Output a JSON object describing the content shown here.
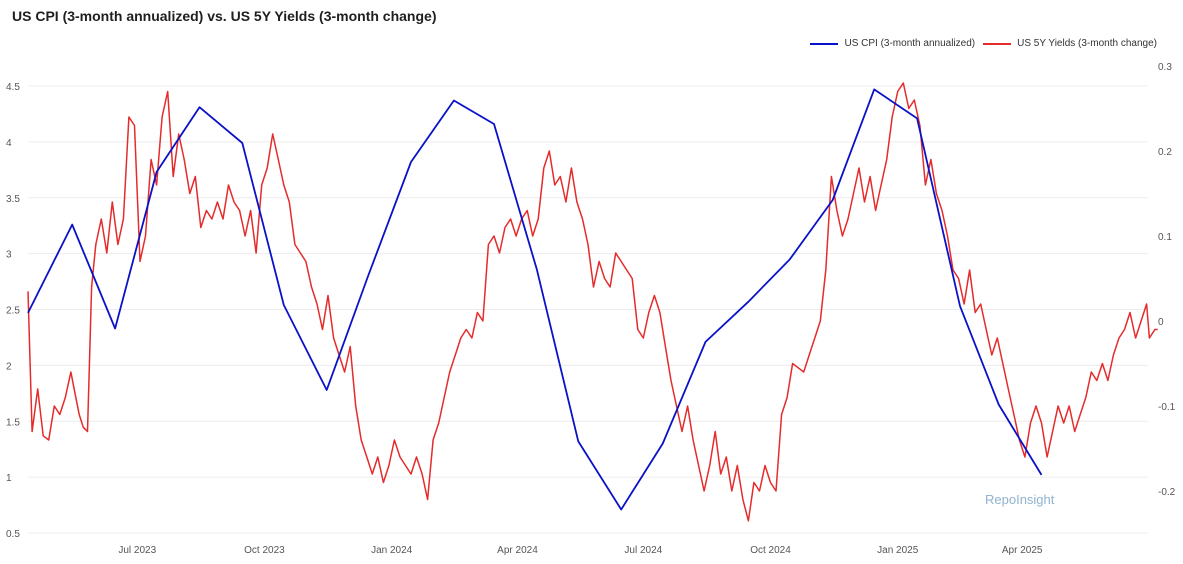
{
  "chart_data": {
    "type": "line",
    "title": "US CPI (3-month annualized) vs. US 5Y Yields (3-month change)",
    "xlabel": "",
    "ylabel": "",
    "legend_position": "top-right",
    "grid": true,
    "x_ticks": [
      "Jul 2023",
      "Oct 2023",
      "Jan 2024",
      "Apr 2024",
      "Jul 2024",
      "Oct 2024",
      "Jan 2025",
      "Apr 2025"
    ],
    "x_tick_dates": [
      "2023-07-01",
      "2023-10-01",
      "2024-01-01",
      "2024-04-01",
      "2024-07-01",
      "2024-10-01",
      "2025-01-01",
      "2025-04-01"
    ],
    "x_range": [
      "2023-04-13",
      "2025-07-01"
    ],
    "y_left": {
      "range": [
        0.5,
        4.6
      ],
      "ticks": [
        "0.5",
        "1",
        "1.5",
        "2",
        "2.5",
        "3",
        "3.5",
        "4",
        "4.5"
      ]
    },
    "y_right": {
      "range": [
        -0.25,
        0.3
      ],
      "ticks": [
        "-0.2",
        "-0.1",
        "0",
        "0.1",
        "0.2",
        "0.3"
      ]
    },
    "series": [
      {
        "name": "US CPI (3-month annualized)",
        "color": "#0a12c8",
        "axis": "left",
        "points": [
          [
            "2023-04-13",
            2.47
          ],
          [
            "2023-05-15",
            3.26
          ],
          [
            "2023-06-15",
            2.33
          ],
          [
            "2023-07-15",
            3.73
          ],
          [
            "2023-08-15",
            4.31
          ],
          [
            "2023-09-15",
            3.99
          ],
          [
            "2023-10-15",
            2.54
          ],
          [
            "2023-11-15",
            1.78
          ],
          [
            "2023-12-15",
            2.8
          ],
          [
            "2024-01-15",
            3.82
          ],
          [
            "2024-02-15",
            4.37
          ],
          [
            "2024-03-15",
            4.16
          ],
          [
            "2024-04-15",
            2.86
          ],
          [
            "2024-05-15",
            1.32
          ],
          [
            "2024-06-15",
            0.71
          ],
          [
            "2024-07-15",
            1.3
          ],
          [
            "2024-08-15",
            2.21
          ],
          [
            "2024-09-15",
            2.57
          ],
          [
            "2024-10-15",
            2.95
          ],
          [
            "2024-11-15",
            3.48
          ],
          [
            "2024-12-15",
            4.47
          ],
          [
            "2025-01-15",
            4.21
          ],
          [
            "2025-02-15",
            2.53
          ],
          [
            "2025-03-15",
            1.65
          ],
          [
            "2025-04-15",
            1.02
          ]
        ]
      },
      {
        "name": "US 5Y Yields (3-month change)",
        "color": "#e52b2b",
        "axis": "right",
        "points": [
          [
            "2023-04-13",
            0.035
          ],
          [
            "2023-04-16",
            -0.13
          ],
          [
            "2023-04-20",
            -0.08
          ],
          [
            "2023-04-24",
            -0.135
          ],
          [
            "2023-04-28",
            -0.14
          ],
          [
            "2023-05-02",
            -0.1
          ],
          [
            "2023-05-06",
            -0.11
          ],
          [
            "2023-05-10",
            -0.09
          ],
          [
            "2023-05-14",
            -0.06
          ],
          [
            "2023-05-17",
            -0.085
          ],
          [
            "2023-05-20",
            -0.11
          ],
          [
            "2023-05-23",
            -0.125
          ],
          [
            "2023-05-26",
            -0.13
          ],
          [
            "2023-05-29",
            0.04
          ],
          [
            "2023-06-01",
            0.09
          ],
          [
            "2023-06-05",
            0.12
          ],
          [
            "2023-06-09",
            0.08
          ],
          [
            "2023-06-13",
            0.14
          ],
          [
            "2023-06-17",
            0.09
          ],
          [
            "2023-06-21",
            0.12
          ],
          [
            "2023-06-25",
            0.24
          ],
          [
            "2023-06-29",
            0.23
          ],
          [
            "2023-07-03",
            0.07
          ],
          [
            "2023-07-07",
            0.1
          ],
          [
            "2023-07-11",
            0.19
          ],
          [
            "2023-07-15",
            0.16
          ],
          [
            "2023-07-19",
            0.24
          ],
          [
            "2023-07-23",
            0.27
          ],
          [
            "2023-07-27",
            0.17
          ],
          [
            "2023-07-31",
            0.22
          ],
          [
            "2023-08-04",
            0.19
          ],
          [
            "2023-08-08",
            0.15
          ],
          [
            "2023-08-12",
            0.17
          ],
          [
            "2023-08-16",
            0.11
          ],
          [
            "2023-08-20",
            0.13
          ],
          [
            "2023-08-24",
            0.12
          ],
          [
            "2023-08-28",
            0.14
          ],
          [
            "2023-09-01",
            0.12
          ],
          [
            "2023-09-05",
            0.16
          ],
          [
            "2023-09-09",
            0.14
          ],
          [
            "2023-09-13",
            0.13
          ],
          [
            "2023-09-17",
            0.1
          ],
          [
            "2023-09-21",
            0.13
          ],
          [
            "2023-09-25",
            0.08
          ],
          [
            "2023-09-29",
            0.16
          ],
          [
            "2023-10-03",
            0.18
          ],
          [
            "2023-10-07",
            0.22
          ],
          [
            "2023-10-11",
            0.19
          ],
          [
            "2023-10-15",
            0.16
          ],
          [
            "2023-10-19",
            0.14
          ],
          [
            "2023-10-23",
            0.09
          ],
          [
            "2023-10-27",
            0.08
          ],
          [
            "2023-10-31",
            0.07
          ],
          [
            "2023-11-04",
            0.04
          ],
          [
            "2023-11-08",
            0.02
          ],
          [
            "2023-11-12",
            -0.01
          ],
          [
            "2023-11-16",
            0.03
          ],
          [
            "2023-11-20",
            -0.02
          ],
          [
            "2023-11-24",
            -0.04
          ],
          [
            "2023-11-28",
            -0.06
          ],
          [
            "2023-12-02",
            -0.03
          ],
          [
            "2023-12-06",
            -0.1
          ],
          [
            "2023-12-10",
            -0.14
          ],
          [
            "2023-12-14",
            -0.16
          ],
          [
            "2023-12-18",
            -0.18
          ],
          [
            "2023-12-22",
            -0.16
          ],
          [
            "2023-12-26",
            -0.19
          ],
          [
            "2023-12-30",
            -0.17
          ],
          [
            "2024-01-03",
            -0.14
          ],
          [
            "2024-01-07",
            -0.16
          ],
          [
            "2024-01-11",
            -0.17
          ],
          [
            "2024-01-15",
            -0.18
          ],
          [
            "2024-01-19",
            -0.16
          ],
          [
            "2024-01-23",
            -0.18
          ],
          [
            "2024-01-27",
            -0.21
          ],
          [
            "2024-01-31",
            -0.14
          ],
          [
            "2024-02-04",
            -0.12
          ],
          [
            "2024-02-08",
            -0.09
          ],
          [
            "2024-02-12",
            -0.06
          ],
          [
            "2024-02-16",
            -0.04
          ],
          [
            "2024-02-20",
            -0.02
          ],
          [
            "2024-02-24",
            -0.01
          ],
          [
            "2024-02-28",
            -0.02
          ],
          [
            "2024-03-03",
            0.01
          ],
          [
            "2024-03-07",
            0.0
          ],
          [
            "2024-03-11",
            0.09
          ],
          [
            "2024-03-15",
            0.1
          ],
          [
            "2024-03-19",
            0.08
          ],
          [
            "2024-03-23",
            0.11
          ],
          [
            "2024-03-27",
            0.12
          ],
          [
            "2024-03-31",
            0.1
          ],
          [
            "2024-04-04",
            0.12
          ],
          [
            "2024-04-08",
            0.13
          ],
          [
            "2024-04-12",
            0.1
          ],
          [
            "2024-04-16",
            0.12
          ],
          [
            "2024-04-20",
            0.18
          ],
          [
            "2024-04-24",
            0.2
          ],
          [
            "2024-04-28",
            0.16
          ],
          [
            "2024-05-02",
            0.17
          ],
          [
            "2024-05-06",
            0.14
          ],
          [
            "2024-05-10",
            0.18
          ],
          [
            "2024-05-14",
            0.14
          ],
          [
            "2024-05-18",
            0.12
          ],
          [
            "2024-05-22",
            0.09
          ],
          [
            "2024-05-26",
            0.04
          ],
          [
            "2024-05-30",
            0.07
          ],
          [
            "2024-06-03",
            0.05
          ],
          [
            "2024-06-07",
            0.04
          ],
          [
            "2024-06-11",
            0.08
          ],
          [
            "2024-06-15",
            0.07
          ],
          [
            "2024-06-19",
            0.06
          ],
          [
            "2024-06-23",
            0.05
          ],
          [
            "2024-06-27",
            -0.01
          ],
          [
            "2024-07-01",
            -0.02
          ],
          [
            "2024-07-05",
            0.01
          ],
          [
            "2024-07-09",
            0.03
          ],
          [
            "2024-07-13",
            0.01
          ],
          [
            "2024-07-17",
            -0.03
          ],
          [
            "2024-07-21",
            -0.07
          ],
          [
            "2024-07-25",
            -0.1
          ],
          [
            "2024-07-29",
            -0.13
          ],
          [
            "2024-08-02",
            -0.1
          ],
          [
            "2024-08-06",
            -0.14
          ],
          [
            "2024-08-10",
            -0.17
          ],
          [
            "2024-08-14",
            -0.2
          ],
          [
            "2024-08-18",
            -0.17
          ],
          [
            "2024-08-22",
            -0.13
          ],
          [
            "2024-08-26",
            -0.18
          ],
          [
            "2024-08-30",
            -0.16
          ],
          [
            "2024-09-03",
            -0.2
          ],
          [
            "2024-09-07",
            -0.17
          ],
          [
            "2024-09-11",
            -0.21
          ],
          [
            "2024-09-15",
            -0.235
          ],
          [
            "2024-09-19",
            -0.19
          ],
          [
            "2024-09-23",
            -0.2
          ],
          [
            "2024-09-27",
            -0.17
          ],
          [
            "2024-10-01",
            -0.19
          ],
          [
            "2024-10-05",
            -0.2
          ],
          [
            "2024-10-09",
            -0.11
          ],
          [
            "2024-10-13",
            -0.09
          ],
          [
            "2024-10-17",
            -0.05
          ],
          [
            "2024-10-21",
            -0.055
          ],
          [
            "2024-10-25",
            -0.06
          ],
          [
            "2024-10-29",
            -0.04
          ],
          [
            "2024-11-02",
            -0.02
          ],
          [
            "2024-11-06",
            0.0
          ],
          [
            "2024-11-10",
            0.06
          ],
          [
            "2024-11-14",
            0.17
          ],
          [
            "2024-11-18",
            0.13
          ],
          [
            "2024-11-22",
            0.1
          ],
          [
            "2024-11-26",
            0.12
          ],
          [
            "2024-11-30",
            0.15
          ],
          [
            "2024-12-04",
            0.18
          ],
          [
            "2024-12-08",
            0.14
          ],
          [
            "2024-12-12",
            0.17
          ],
          [
            "2024-12-16",
            0.13
          ],
          [
            "2024-12-20",
            0.16
          ],
          [
            "2024-12-24",
            0.19
          ],
          [
            "2024-12-28",
            0.24
          ],
          [
            "2025-01-01",
            0.27
          ],
          [
            "2025-01-05",
            0.28
          ],
          [
            "2025-01-09",
            0.25
          ],
          [
            "2025-01-13",
            0.26
          ],
          [
            "2025-01-17",
            0.23
          ],
          [
            "2025-01-21",
            0.16
          ],
          [
            "2025-01-25",
            0.19
          ],
          [
            "2025-01-29",
            0.15
          ],
          [
            "2025-02-02",
            0.13
          ],
          [
            "2025-02-06",
            0.1
          ],
          [
            "2025-02-10",
            0.06
          ],
          [
            "2025-02-14",
            0.05
          ],
          [
            "2025-02-18",
            0.02
          ],
          [
            "2025-02-22",
            0.06
          ],
          [
            "2025-02-26",
            0.01
          ],
          [
            "2025-03-02",
            0.02
          ],
          [
            "2025-03-06",
            -0.01
          ],
          [
            "2025-03-10",
            -0.04
          ],
          [
            "2025-03-14",
            -0.02
          ],
          [
            "2025-03-18",
            -0.05
          ],
          [
            "2025-03-22",
            -0.08
          ],
          [
            "2025-03-26",
            -0.11
          ],
          [
            "2025-03-30",
            -0.14
          ],
          [
            "2025-04-03",
            -0.16
          ],
          [
            "2025-04-07",
            -0.12
          ],
          [
            "2025-04-11",
            -0.1
          ],
          [
            "2025-04-15",
            -0.12
          ],
          [
            "2025-04-19",
            -0.16
          ],
          [
            "2025-04-23",
            -0.13
          ],
          [
            "2025-04-27",
            -0.1
          ],
          [
            "2025-05-01",
            -0.12
          ],
          [
            "2025-05-05",
            -0.1
          ],
          [
            "2025-05-09",
            -0.13
          ],
          [
            "2025-05-13",
            -0.11
          ],
          [
            "2025-05-17",
            -0.09
          ],
          [
            "2025-05-21",
            -0.06
          ],
          [
            "2025-05-25",
            -0.07
          ],
          [
            "2025-05-29",
            -0.05
          ],
          [
            "2025-06-02",
            -0.07
          ],
          [
            "2025-06-06",
            -0.04
          ],
          [
            "2025-06-10",
            -0.02
          ],
          [
            "2025-06-14",
            -0.01
          ],
          [
            "2025-06-18",
            0.01
          ],
          [
            "2025-06-22",
            -0.02
          ],
          [
            "2025-06-26",
            0.0
          ],
          [
            "2025-06-30",
            0.02
          ],
          [
            "2025-07-02",
            -0.02
          ],
          [
            "2025-07-06",
            -0.01
          ],
          [
            "2025-07-08",
            -0.01
          ]
        ]
      }
    ]
  },
  "watermark": "RepoInsight"
}
